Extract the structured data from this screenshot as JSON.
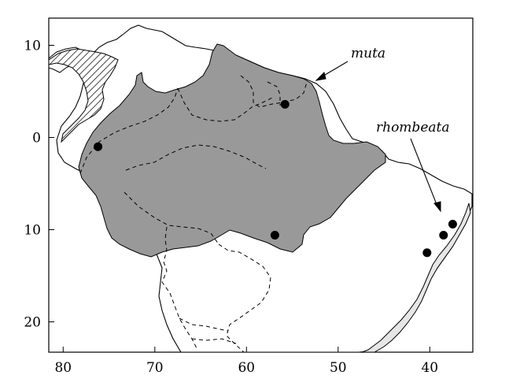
{
  "map": {
    "x_axis": {
      "ticks": [
        {
          "value": 80,
          "label": "80"
        },
        {
          "value": 70,
          "label": "70"
        },
        {
          "value": 60,
          "label": "60"
        },
        {
          "value": 50,
          "label": "50"
        },
        {
          "value": 40,
          "label": "40"
        }
      ]
    },
    "y_axis": {
      "ticks": [
        {
          "value": 10,
          "label": "10"
        },
        {
          "value": 0,
          "label": "0"
        },
        {
          "value": -10,
          "label": "10"
        },
        {
          "value": -20,
          "label": "20"
        }
      ]
    },
    "ranges": [
      {
        "label": "muta",
        "fill": "#999999"
      },
      {
        "label": "rhombeata",
        "fill": "#e6e6e6"
      }
    ],
    "hatched_region": {
      "pattern": "diagonal-hatch"
    },
    "record_points": [
      {
        "lon": 76.2,
        "lat": -1.0
      },
      {
        "lon": 55.8,
        "lat": 3.6
      },
      {
        "lon": 56.9,
        "lat": -10.6
      },
      {
        "lon": 37.5,
        "lat": -9.4
      },
      {
        "lon": 38.5,
        "lat": -10.6
      },
      {
        "lon": 40.3,
        "lat": -12.5
      }
    ],
    "colors": {
      "land_outline": "#000000",
      "borders": "#000000",
      "points": "#000000"
    }
  }
}
